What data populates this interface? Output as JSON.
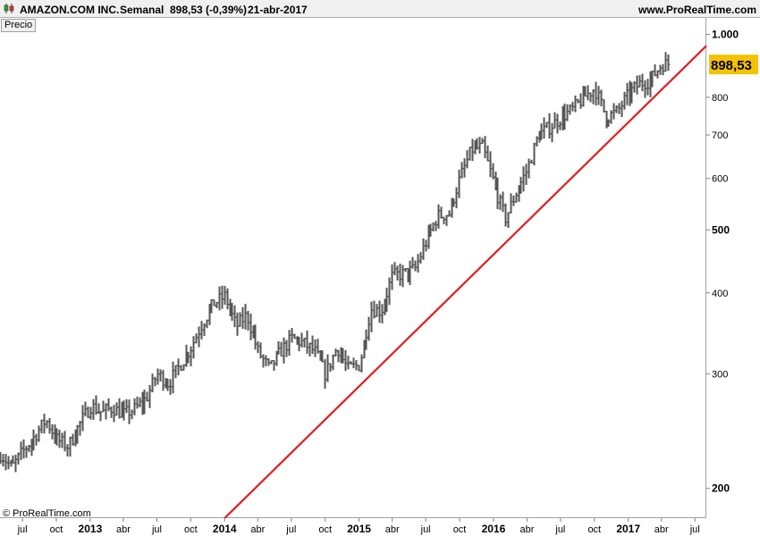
{
  "header": {
    "title": "AMAZON.COM INC.",
    "period": "Semanal",
    "price_change": "898,53 (-0,39%)",
    "date": "21-abr-2017",
    "site": "www.ProRealTime.com"
  },
  "series_label": "Precio",
  "copyright": "© ProRealTime.com",
  "last_price_label": "898,53",
  "colors": {
    "bars": "#555555",
    "trendline": "#e01e1e",
    "last_price_box": "#f3c200"
  },
  "chart_data": {
    "type": "line",
    "scale": "log",
    "ylim": [
      180,
      1060
    ],
    "y_ticks": [
      {
        "value": 1000,
        "label": "1.000",
        "bold": true
      },
      {
        "value": 800,
        "label": "800",
        "bold": false
      },
      {
        "value": 700,
        "label": "700",
        "bold": false
      },
      {
        "value": 600,
        "label": "600",
        "bold": false
      },
      {
        "value": 500,
        "label": "500",
        "bold": true
      },
      {
        "value": 400,
        "label": "400",
        "bold": false
      },
      {
        "value": 300,
        "label": "300",
        "bold": false
      },
      {
        "value": 200,
        "label": "200",
        "bold": true
      }
    ],
    "x_ticks": [
      {
        "label": "jul",
        "date": "2012-07-01",
        "bold": false
      },
      {
        "label": "oct",
        "date": "2012-10-01",
        "bold": false
      },
      {
        "label": "2013",
        "date": "2013-01-01",
        "bold": true
      },
      {
        "label": "abr",
        "date": "2013-04-01",
        "bold": false
      },
      {
        "label": "jul",
        "date": "2013-07-01",
        "bold": false
      },
      {
        "label": "oct",
        "date": "2013-10-01",
        "bold": false
      },
      {
        "label": "2014",
        "date": "2014-01-01",
        "bold": true
      },
      {
        "label": "abr",
        "date": "2014-04-01",
        "bold": false
      },
      {
        "label": "jul",
        "date": "2014-07-01",
        "bold": false
      },
      {
        "label": "oct",
        "date": "2014-10-01",
        "bold": false
      },
      {
        "label": "2015",
        "date": "2015-01-01",
        "bold": true
      },
      {
        "label": "abr",
        "date": "2015-04-01",
        "bold": false
      },
      {
        "label": "jul",
        "date": "2015-07-01",
        "bold": false
      },
      {
        "label": "oct",
        "date": "2015-10-01",
        "bold": false
      },
      {
        "label": "2016",
        "date": "2016-01-01",
        "bold": true
      },
      {
        "label": "abr",
        "date": "2016-04-01",
        "bold": false
      },
      {
        "label": "jul",
        "date": "2016-07-01",
        "bold": false
      },
      {
        "label": "oct",
        "date": "2016-10-01",
        "bold": false
      },
      {
        "label": "2017",
        "date": "2017-01-01",
        "bold": true
      },
      {
        "label": "abr",
        "date": "2017-04-01",
        "bold": false
      },
      {
        "label": "jul",
        "date": "2017-07-01",
        "bold": false
      }
    ],
    "xlim": [
      "2012-05-01",
      "2017-08-01"
    ],
    "bar_width_days": 7,
    "price_path": [
      [
        "2012-05-01",
        226
      ],
      [
        "2012-06-01",
        215
      ],
      [
        "2012-07-01",
        228
      ],
      [
        "2012-08-01",
        240
      ],
      [
        "2012-09-01",
        255
      ],
      [
        "2012-10-01",
        238
      ],
      [
        "2012-11-01",
        232
      ],
      [
        "2012-12-01",
        250
      ],
      [
        "2013-01-01",
        268
      ],
      [
        "2013-02-01",
        262
      ],
      [
        "2013-03-01",
        266
      ],
      [
        "2013-04-01",
        260
      ],
      [
        "2013-05-01",
        265
      ],
      [
        "2013-06-01",
        275
      ],
      [
        "2013-07-01",
        300
      ],
      [
        "2013-08-01",
        290
      ],
      [
        "2013-09-01",
        310
      ],
      [
        "2013-10-01",
        330
      ],
      [
        "2013-11-01",
        360
      ],
      [
        "2013-12-01",
        385
      ],
      [
        "2014-01-01",
        395
      ],
      [
        "2014-02-01",
        355
      ],
      [
        "2014-03-01",
        370
      ],
      [
        "2014-04-01",
        325
      ],
      [
        "2014-05-01",
        305
      ],
      [
        "2014-06-01",
        325
      ],
      [
        "2014-07-01",
        340
      ],
      [
        "2014-08-01",
        335
      ],
      [
        "2014-09-01",
        325
      ],
      [
        "2014-10-01",
        300
      ],
      [
        "2014-11-01",
        330
      ],
      [
        "2014-12-01",
        305
      ],
      [
        "2015-01-01",
        310
      ],
      [
        "2015-02-01",
        378
      ],
      [
        "2015-03-01",
        375
      ],
      [
        "2015-04-01",
        425
      ],
      [
        "2015-05-01",
        428
      ],
      [
        "2015-06-01",
        435
      ],
      [
        "2015-07-01",
        480
      ],
      [
        "2015-08-01",
        525
      ],
      [
        "2015-09-01",
        530
      ],
      [
        "2015-10-01",
        600
      ],
      [
        "2015-11-01",
        665
      ],
      [
        "2015-12-01",
        670
      ],
      [
        "2016-01-01",
        590
      ],
      [
        "2016-02-01",
        520
      ],
      [
        "2016-03-01",
        570
      ],
      [
        "2016-04-01",
        620
      ],
      [
        "2016-05-01",
        700
      ],
      [
        "2016-06-01",
        720
      ],
      [
        "2016-07-01",
        745
      ],
      [
        "2016-08-01",
        765
      ],
      [
        "2016-09-01",
        800
      ],
      [
        "2016-10-01",
        825
      ],
      [
        "2016-11-01",
        745
      ],
      [
        "2016-12-01",
        760
      ],
      [
        "2017-01-01",
        810
      ],
      [
        "2017-02-01",
        840
      ],
      [
        "2017-03-01",
        850
      ],
      [
        "2017-04-01",
        900
      ],
      [
        "2017-04-21",
        898.53
      ]
    ],
    "trendline": [
      {
        "date": "2014-01-01",
        "value": 180
      },
      {
        "date": "2017-08-01",
        "value": 960
      }
    ],
    "last_price": 898.53
  }
}
